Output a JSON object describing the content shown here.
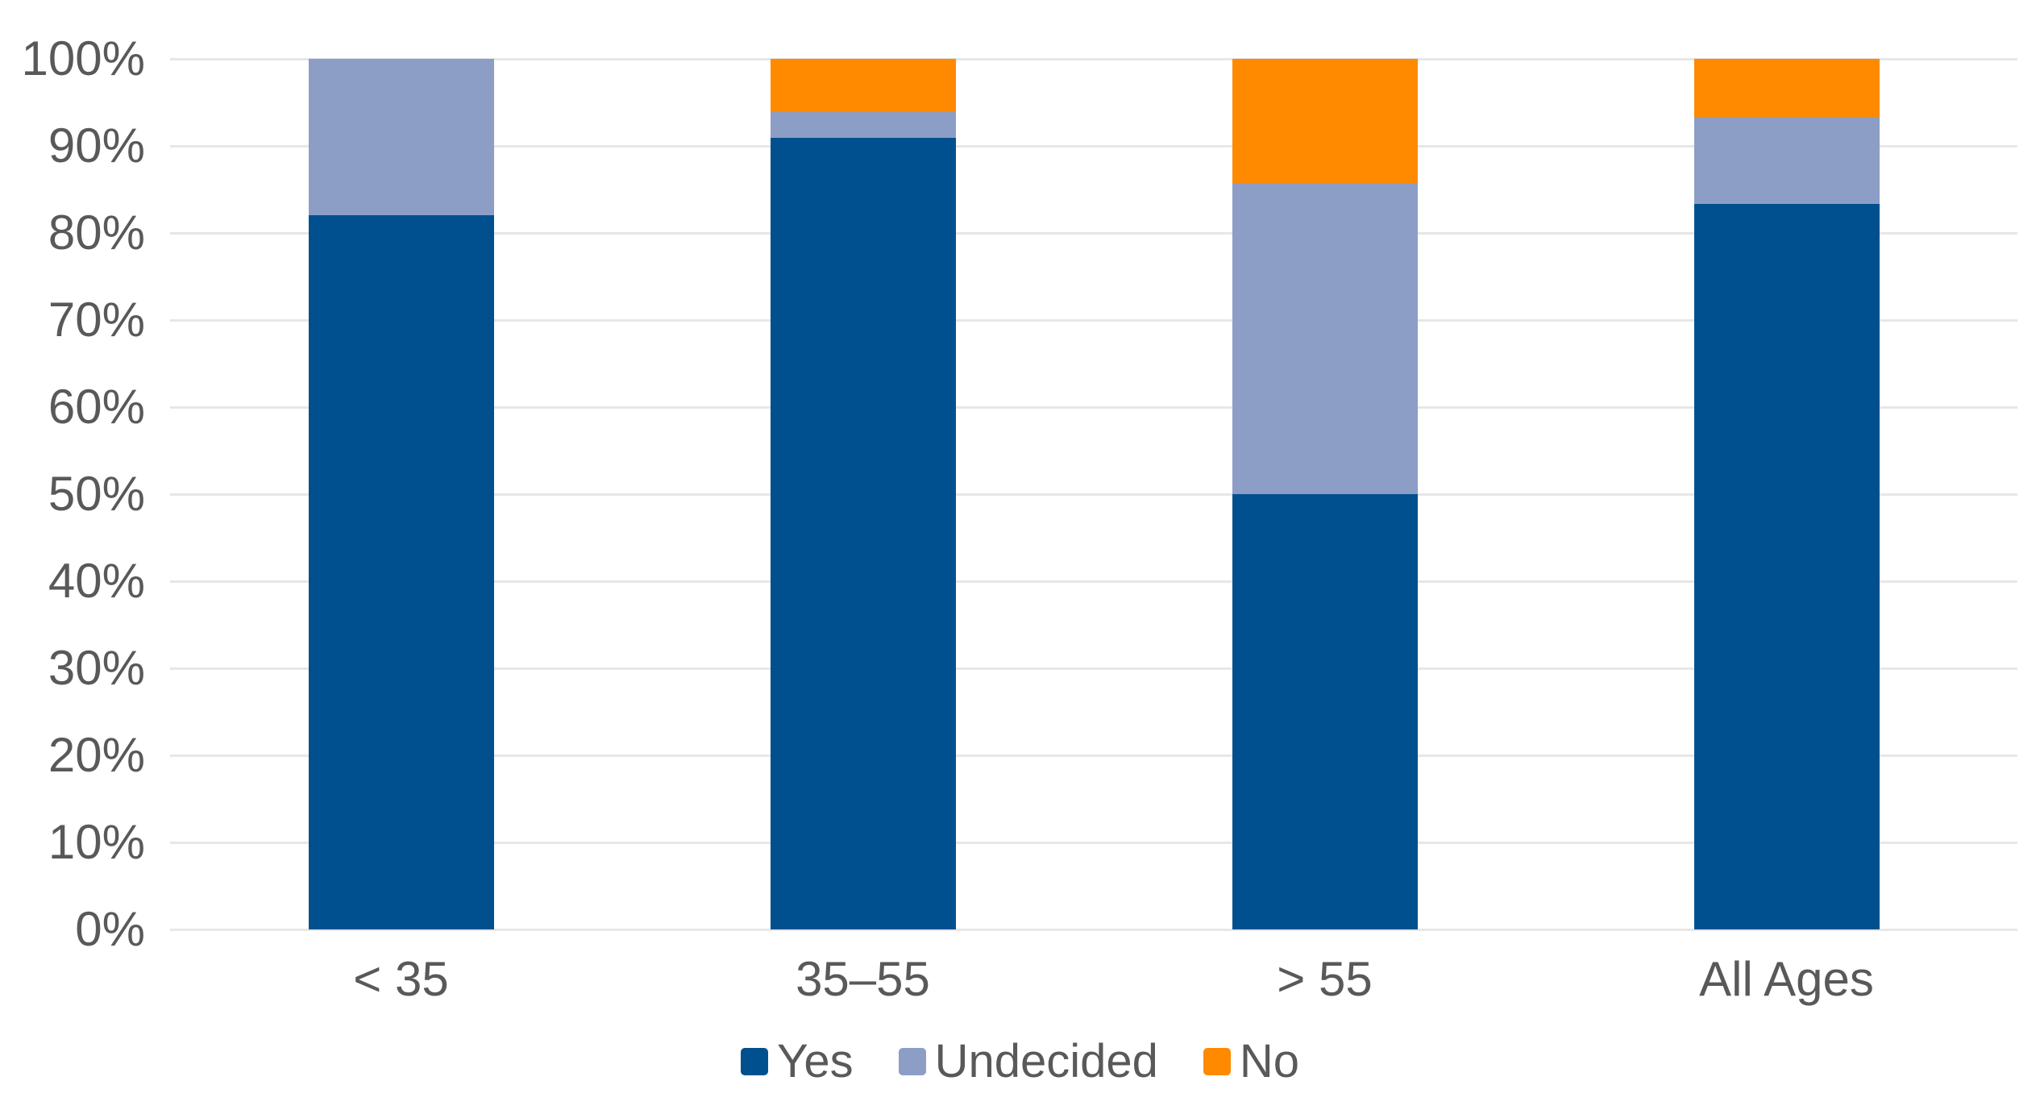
{
  "chart_data": {
    "type": "bar",
    "variant": "stacked-100-percent",
    "title": "",
    "xlabel": "",
    "ylabel": "",
    "categories": [
      "< 35",
      "35–55",
      "> 55",
      "All Ages"
    ],
    "series": [
      {
        "name": "Yes",
        "color": "#00508F",
        "values": [
          82,
          90.9,
          50,
          83.3
        ]
      },
      {
        "name": "Undecided",
        "color": "#8C9EC6",
        "values": [
          18,
          3.0,
          35.7,
          10
        ]
      },
      {
        "name": "No",
        "color": "#FF8A00",
        "values": [
          0,
          6.1,
          14.3,
          6.7
        ]
      }
    ],
    "ylim": [
      0,
      100
    ],
    "ytick_step": 10,
    "ytick_labels": [
      "0%",
      "10%",
      "20%",
      "30%",
      "40%",
      "50%",
      "60%",
      "70%",
      "80%",
      "90%",
      "100%"
    ],
    "grid": true,
    "gridline_color": "#E7E7E7",
    "text_color": "#595959",
    "legend_position": "bottom-center",
    "legend": [
      "Yes",
      "Undecided",
      "No"
    ]
  }
}
